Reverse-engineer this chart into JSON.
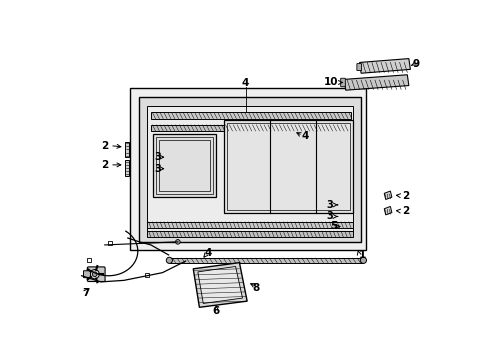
{
  "bg_color": "#ffffff",
  "line_color": "#000000",
  "gray_fill": "#d4d4d4",
  "light_gray": "#e8e8e8",
  "fig_width": 4.89,
  "fig_height": 3.6,
  "dpi": 100
}
